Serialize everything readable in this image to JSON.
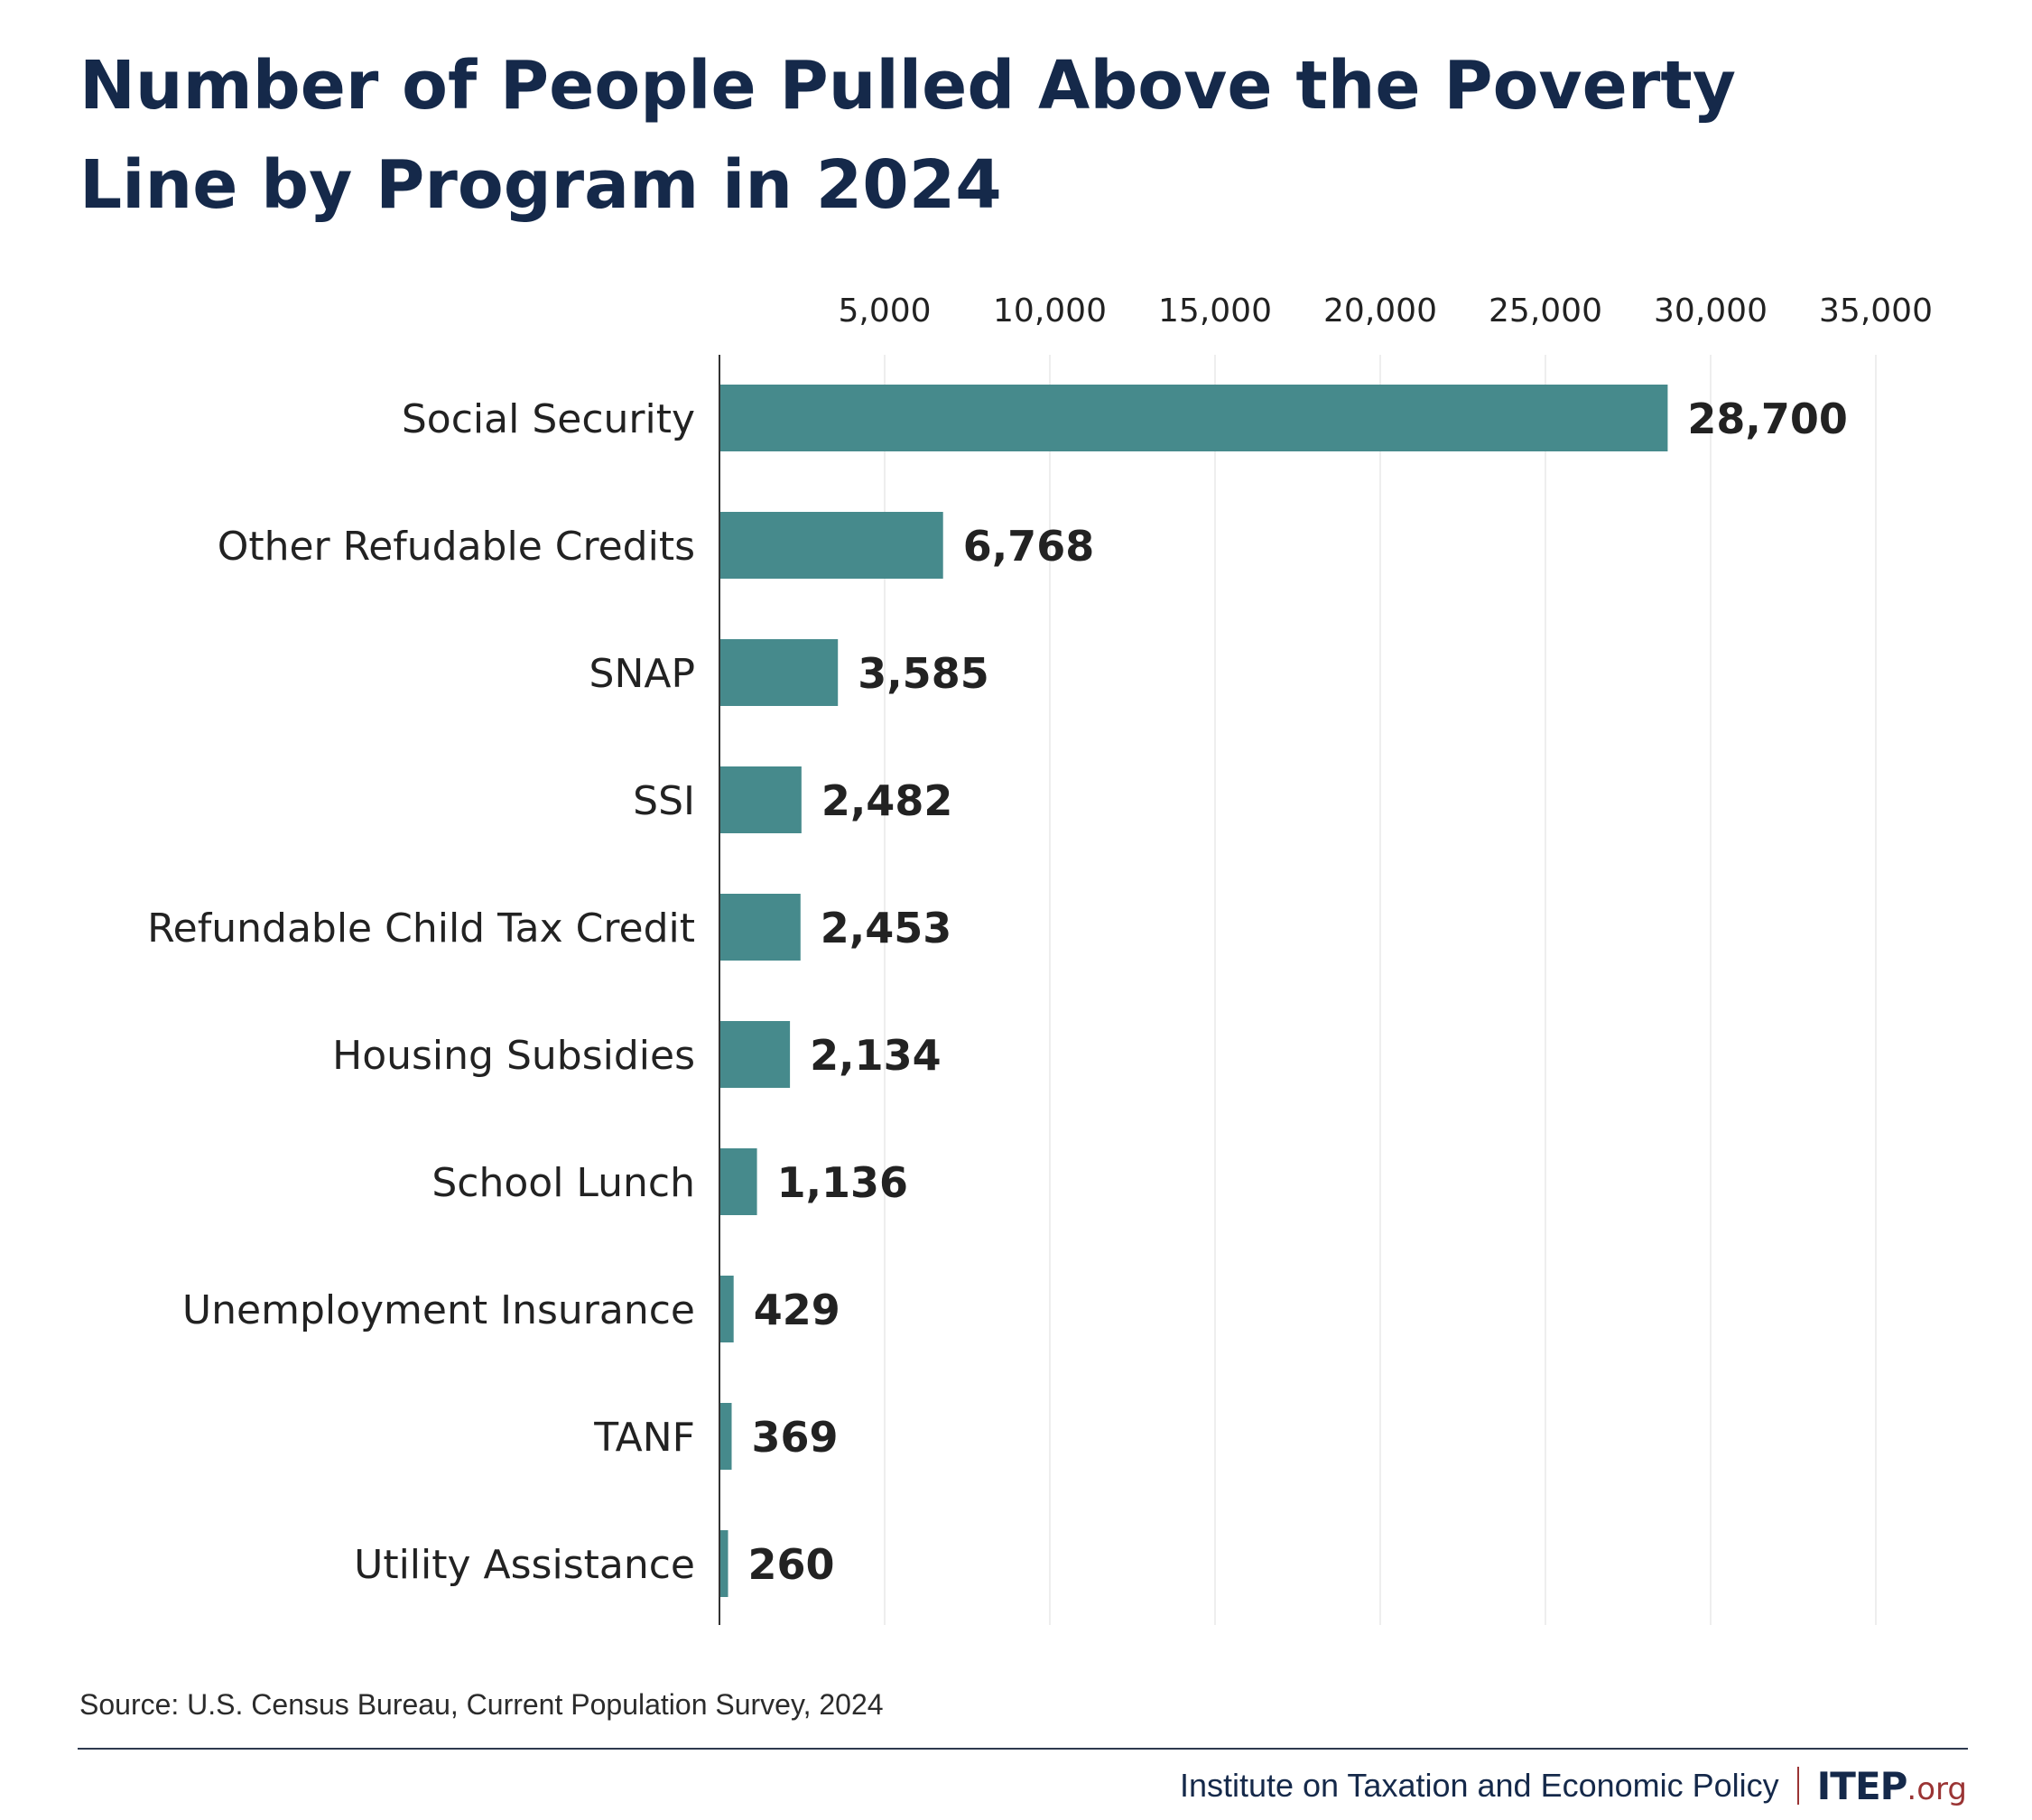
{
  "chart_data": {
    "type": "bar",
    "orientation": "horizontal",
    "title": "Number of People Pulled Above the Poverty Line by Program in 2024",
    "categories": [
      "Social Security",
      "Other Refudable Credits",
      "SNAP",
      "SSI",
      "Refundable Child Tax Credit",
      "Housing Subsidies",
      "School Lunch",
      "Unemployment Insurance",
      "TANF",
      "Utility Assistance"
    ],
    "values": [
      28700,
      6768,
      3585,
      2482,
      2453,
      2134,
      1136,
      429,
      369,
      260
    ],
    "value_labels": [
      "28,700",
      "6,768",
      "3,585",
      "2,482",
      "2,453",
      "2,134",
      "1,136",
      "429",
      "369",
      "260"
    ],
    "xlim": [
      0,
      35000
    ],
    "x_ticks": [
      5000,
      10000,
      15000,
      20000,
      25000,
      30000,
      35000
    ],
    "x_tick_labels": [
      "5,000",
      "10,000",
      "15,000",
      "20,000",
      "25,000",
      "30,000",
      "35,000"
    ],
    "x_axis_position": "top",
    "grid": true,
    "legend": "none",
    "bar_color": "#468a8c",
    "grid_color": "#eeeeee",
    "axis_color": "#333333"
  },
  "source": "Source: U.S. Census Bureau, Current Population Survey, 2024",
  "footer": {
    "org_name": "Institute on Taxation and Economic Policy",
    "logo_main": "ITEP",
    "logo_suffix": ".org"
  }
}
